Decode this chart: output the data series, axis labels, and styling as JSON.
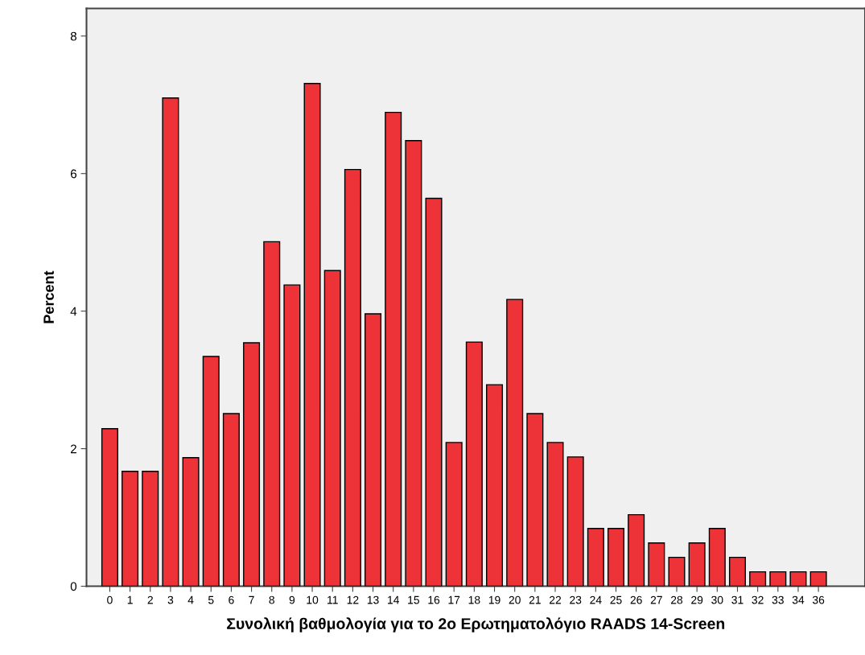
{
  "chart_data": {
    "type": "bar",
    "xlabel": "Συνολική βαθμολογία για το 2ο Ερωτηματολόγιο RAADS 14-Screen",
    "ylabel": "Percent",
    "categories": [
      "0",
      "1",
      "2",
      "3",
      "4",
      "5",
      "6",
      "7",
      "8",
      "9",
      "10",
      "11",
      "12",
      "13",
      "14",
      "15",
      "16",
      "17",
      "18",
      "19",
      "20",
      "21",
      "22",
      "23",
      "24",
      "25",
      "26",
      "27",
      "28",
      "29",
      "30",
      "31",
      "32",
      "33",
      "34",
      "36"
    ],
    "values": [
      2.29,
      1.67,
      1.67,
      7.1,
      1.87,
      3.34,
      2.51,
      3.54,
      5.01,
      4.38,
      7.31,
      4.59,
      6.06,
      3.96,
      6.89,
      6.48,
      5.64,
      2.09,
      3.55,
      2.93,
      4.17,
      2.51,
      2.09,
      1.88,
      0.84,
      0.84,
      1.04,
      0.63,
      0.42,
      0.63,
      0.84,
      0.42,
      0.21,
      0.21,
      0.21,
      0.21
    ],
    "color": "#ee3338",
    "ylim": [
      0,
      8.4
    ],
    "yticks": [
      0,
      2,
      4,
      6,
      8
    ],
    "grid": false
  }
}
